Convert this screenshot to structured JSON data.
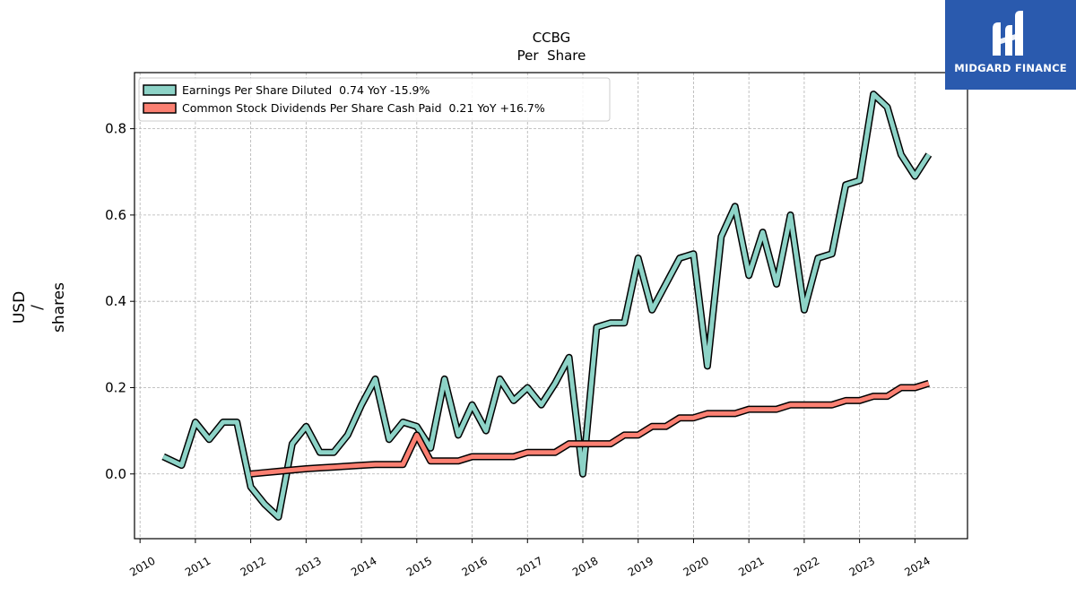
{
  "chart_data": {
    "type": "line",
    "title": "CCBG",
    "subtitle": "Per  Share",
    "ylabel": [
      "USD",
      "/",
      "shares"
    ],
    "xlim": [
      2009.9,
      2024.95
    ],
    "ylim": [
      -0.15,
      0.93
    ],
    "xticks": [
      2010,
      2011,
      2012,
      2013,
      2014,
      2015,
      2016,
      2017,
      2018,
      2019,
      2020,
      2021,
      2022,
      2023,
      2024
    ],
    "yticks": [
      0.0,
      0.2,
      0.4,
      0.6,
      0.8
    ],
    "ytick_labels": [
      "0.0",
      "0.2",
      "0.4",
      "0.6",
      "0.8"
    ],
    "grid": true,
    "legend_position": "top-left",
    "series": [
      {
        "name": "Earnings Per Share Diluted  0.74 YoY -15.9%",
        "color": "#8dd3c7",
        "x": [
          2010.42,
          2010.75,
          2011.0,
          2011.25,
          2011.5,
          2011.75,
          2012.0,
          2012.25,
          2012.5,
          2012.75,
          2013.0,
          2013.25,
          2013.5,
          2013.75,
          2014.0,
          2014.25,
          2014.5,
          2014.75,
          2015.0,
          2015.25,
          2015.5,
          2015.75,
          2016.0,
          2016.25,
          2016.5,
          2016.75,
          2017.0,
          2017.25,
          2017.5,
          2017.75,
          2018.0,
          2018.25,
          2018.5,
          2018.75,
          2019.0,
          2019.25,
          2019.5,
          2019.75,
          2020.0,
          2020.25,
          2020.5,
          2020.75,
          2021.0,
          2021.25,
          2021.5,
          2021.75,
          2022.0,
          2022.25,
          2022.5,
          2022.75,
          2023.0,
          2023.25,
          2023.5,
          2023.75,
          2024.0,
          2024.25
        ],
        "y": [
          0.04,
          0.02,
          0.12,
          0.08,
          0.12,
          0.12,
          -0.03,
          -0.07,
          -0.1,
          0.07,
          0.11,
          0.05,
          0.05,
          0.09,
          0.16,
          0.22,
          0.08,
          0.12,
          0.11,
          0.06,
          0.22,
          0.09,
          0.16,
          0.1,
          0.22,
          0.17,
          0.2,
          0.16,
          0.21,
          0.27,
          0.0,
          0.34,
          0.35,
          0.35,
          0.5,
          0.38,
          0.44,
          0.5,
          0.51,
          0.25,
          0.55,
          0.62,
          0.46,
          0.56,
          0.44,
          0.6,
          0.38,
          0.5,
          0.51,
          0.67,
          0.68,
          0.88,
          0.85,
          0.74,
          0.69,
          0.74
        ]
      },
      {
        "name": "Common Stock Dividends Per Share Cash Paid  0.21 YoY +16.7%",
        "color": "#fb8072",
        "x": [
          2012.0,
          2012.25,
          2012.5,
          2012.75,
          2013.0,
          2013.25,
          2013.5,
          2013.75,
          2014.0,
          2014.25,
          2014.5,
          2014.75,
          2015.0,
          2015.25,
          2015.5,
          2015.75,
          2016.0,
          2016.25,
          2016.5,
          2016.75,
          2017.0,
          2017.25,
          2017.5,
          2017.75,
          2018.0,
          2018.25,
          2018.5,
          2018.75,
          2019.0,
          2019.25,
          2019.5,
          2019.75,
          2020.0,
          2020.25,
          2020.5,
          2020.75,
          2021.0,
          2021.25,
          2021.5,
          2021.75,
          2022.0,
          2022.25,
          2022.5,
          2022.75,
          2023.0,
          2023.25,
          2023.5,
          2023.75,
          2024.0,
          2024.25
        ],
        "y": [
          0.0,
          0.003,
          0.006,
          0.009,
          0.012,
          0.014,
          0.016,
          0.018,
          0.02,
          0.022,
          0.022,
          0.022,
          0.09,
          0.03,
          0.03,
          0.03,
          0.04,
          0.04,
          0.04,
          0.04,
          0.05,
          0.05,
          0.05,
          0.07,
          0.07,
          0.07,
          0.07,
          0.09,
          0.09,
          0.11,
          0.11,
          0.13,
          0.13,
          0.14,
          0.14,
          0.14,
          0.15,
          0.15,
          0.15,
          0.16,
          0.16,
          0.16,
          0.16,
          0.17,
          0.17,
          0.18,
          0.18,
          0.2,
          0.2,
          0.21
        ]
      }
    ]
  },
  "logo": {
    "text": "MIDGARD FINANCE",
    "background": "#2a5aae"
  }
}
